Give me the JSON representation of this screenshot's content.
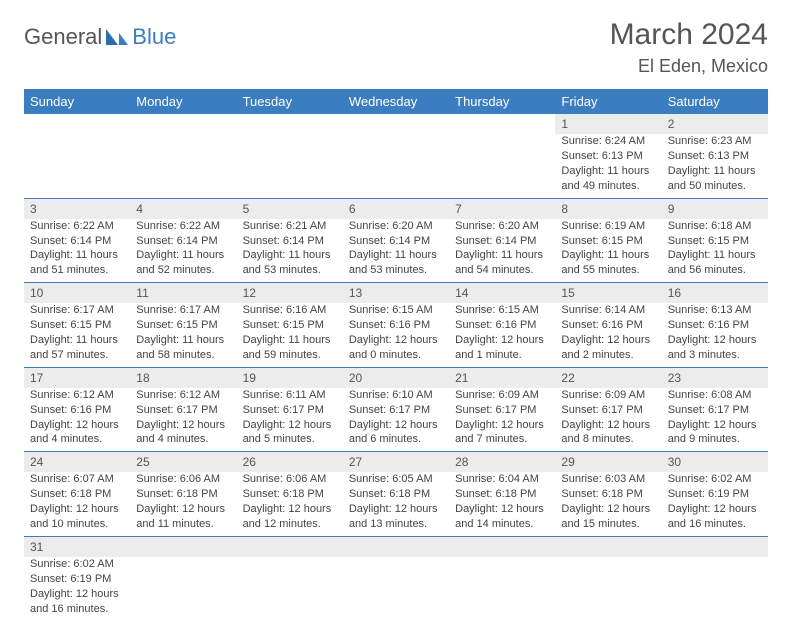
{
  "header": {
    "logo_text_1": "General",
    "logo_text_2": "Blue",
    "month_title": "March 2024",
    "location": "El Eden, Mexico"
  },
  "colors": {
    "header_bg": "#3a7ec1",
    "header_text": "#ffffff",
    "daynum_bg": "#ececec",
    "row_divider": "#3a7ec1",
    "body_text": "#444444",
    "title_text": "#555555"
  },
  "weekdays": [
    "Sunday",
    "Monday",
    "Tuesday",
    "Wednesday",
    "Thursday",
    "Friday",
    "Saturday"
  ],
  "weeks": [
    [
      {
        "empty": true
      },
      {
        "empty": true
      },
      {
        "empty": true
      },
      {
        "empty": true
      },
      {
        "empty": true
      },
      {
        "day": "1",
        "sunrise": "Sunrise: 6:24 AM",
        "sunset": "Sunset: 6:13 PM",
        "daylight1": "Daylight: 11 hours",
        "daylight2": "and 49 minutes."
      },
      {
        "day": "2",
        "sunrise": "Sunrise: 6:23 AM",
        "sunset": "Sunset: 6:13 PM",
        "daylight1": "Daylight: 11 hours",
        "daylight2": "and 50 minutes."
      }
    ],
    [
      {
        "day": "3",
        "sunrise": "Sunrise: 6:22 AM",
        "sunset": "Sunset: 6:14 PM",
        "daylight1": "Daylight: 11 hours",
        "daylight2": "and 51 minutes."
      },
      {
        "day": "4",
        "sunrise": "Sunrise: 6:22 AM",
        "sunset": "Sunset: 6:14 PM",
        "daylight1": "Daylight: 11 hours",
        "daylight2": "and 52 minutes."
      },
      {
        "day": "5",
        "sunrise": "Sunrise: 6:21 AM",
        "sunset": "Sunset: 6:14 PM",
        "daylight1": "Daylight: 11 hours",
        "daylight2": "and 53 minutes."
      },
      {
        "day": "6",
        "sunrise": "Sunrise: 6:20 AM",
        "sunset": "Sunset: 6:14 PM",
        "daylight1": "Daylight: 11 hours",
        "daylight2": "and 53 minutes."
      },
      {
        "day": "7",
        "sunrise": "Sunrise: 6:20 AM",
        "sunset": "Sunset: 6:14 PM",
        "daylight1": "Daylight: 11 hours",
        "daylight2": "and 54 minutes."
      },
      {
        "day": "8",
        "sunrise": "Sunrise: 6:19 AM",
        "sunset": "Sunset: 6:15 PM",
        "daylight1": "Daylight: 11 hours",
        "daylight2": "and 55 minutes."
      },
      {
        "day": "9",
        "sunrise": "Sunrise: 6:18 AM",
        "sunset": "Sunset: 6:15 PM",
        "daylight1": "Daylight: 11 hours",
        "daylight2": "and 56 minutes."
      }
    ],
    [
      {
        "day": "10",
        "sunrise": "Sunrise: 6:17 AM",
        "sunset": "Sunset: 6:15 PM",
        "daylight1": "Daylight: 11 hours",
        "daylight2": "and 57 minutes."
      },
      {
        "day": "11",
        "sunrise": "Sunrise: 6:17 AM",
        "sunset": "Sunset: 6:15 PM",
        "daylight1": "Daylight: 11 hours",
        "daylight2": "and 58 minutes."
      },
      {
        "day": "12",
        "sunrise": "Sunrise: 6:16 AM",
        "sunset": "Sunset: 6:15 PM",
        "daylight1": "Daylight: 11 hours",
        "daylight2": "and 59 minutes."
      },
      {
        "day": "13",
        "sunrise": "Sunrise: 6:15 AM",
        "sunset": "Sunset: 6:16 PM",
        "daylight1": "Daylight: 12 hours",
        "daylight2": "and 0 minutes."
      },
      {
        "day": "14",
        "sunrise": "Sunrise: 6:15 AM",
        "sunset": "Sunset: 6:16 PM",
        "daylight1": "Daylight: 12 hours",
        "daylight2": "and 1 minute."
      },
      {
        "day": "15",
        "sunrise": "Sunrise: 6:14 AM",
        "sunset": "Sunset: 6:16 PM",
        "daylight1": "Daylight: 12 hours",
        "daylight2": "and 2 minutes."
      },
      {
        "day": "16",
        "sunrise": "Sunrise: 6:13 AM",
        "sunset": "Sunset: 6:16 PM",
        "daylight1": "Daylight: 12 hours",
        "daylight2": "and 3 minutes."
      }
    ],
    [
      {
        "day": "17",
        "sunrise": "Sunrise: 6:12 AM",
        "sunset": "Sunset: 6:16 PM",
        "daylight1": "Daylight: 12 hours",
        "daylight2": "and 4 minutes."
      },
      {
        "day": "18",
        "sunrise": "Sunrise: 6:12 AM",
        "sunset": "Sunset: 6:17 PM",
        "daylight1": "Daylight: 12 hours",
        "daylight2": "and 4 minutes."
      },
      {
        "day": "19",
        "sunrise": "Sunrise: 6:11 AM",
        "sunset": "Sunset: 6:17 PM",
        "daylight1": "Daylight: 12 hours",
        "daylight2": "and 5 minutes."
      },
      {
        "day": "20",
        "sunrise": "Sunrise: 6:10 AM",
        "sunset": "Sunset: 6:17 PM",
        "daylight1": "Daylight: 12 hours",
        "daylight2": "and 6 minutes."
      },
      {
        "day": "21",
        "sunrise": "Sunrise: 6:09 AM",
        "sunset": "Sunset: 6:17 PM",
        "daylight1": "Daylight: 12 hours",
        "daylight2": "and 7 minutes."
      },
      {
        "day": "22",
        "sunrise": "Sunrise: 6:09 AM",
        "sunset": "Sunset: 6:17 PM",
        "daylight1": "Daylight: 12 hours",
        "daylight2": "and 8 minutes."
      },
      {
        "day": "23",
        "sunrise": "Sunrise: 6:08 AM",
        "sunset": "Sunset: 6:17 PM",
        "daylight1": "Daylight: 12 hours",
        "daylight2": "and 9 minutes."
      }
    ],
    [
      {
        "day": "24",
        "sunrise": "Sunrise: 6:07 AM",
        "sunset": "Sunset: 6:18 PM",
        "daylight1": "Daylight: 12 hours",
        "daylight2": "and 10 minutes."
      },
      {
        "day": "25",
        "sunrise": "Sunrise: 6:06 AM",
        "sunset": "Sunset: 6:18 PM",
        "daylight1": "Daylight: 12 hours",
        "daylight2": "and 11 minutes."
      },
      {
        "day": "26",
        "sunrise": "Sunrise: 6:06 AM",
        "sunset": "Sunset: 6:18 PM",
        "daylight1": "Daylight: 12 hours",
        "daylight2": "and 12 minutes."
      },
      {
        "day": "27",
        "sunrise": "Sunrise: 6:05 AM",
        "sunset": "Sunset: 6:18 PM",
        "daylight1": "Daylight: 12 hours",
        "daylight2": "and 13 minutes."
      },
      {
        "day": "28",
        "sunrise": "Sunrise: 6:04 AM",
        "sunset": "Sunset: 6:18 PM",
        "daylight1": "Daylight: 12 hours",
        "daylight2": "and 14 minutes."
      },
      {
        "day": "29",
        "sunrise": "Sunrise: 6:03 AM",
        "sunset": "Sunset: 6:18 PM",
        "daylight1": "Daylight: 12 hours",
        "daylight2": "and 15 minutes."
      },
      {
        "day": "30",
        "sunrise": "Sunrise: 6:02 AM",
        "sunset": "Sunset: 6:19 PM",
        "daylight1": "Daylight: 12 hours",
        "daylight2": "and 16 minutes."
      }
    ],
    [
      {
        "day": "31",
        "sunrise": "Sunrise: 6:02 AM",
        "sunset": "Sunset: 6:19 PM",
        "daylight1": "Daylight: 12 hours",
        "daylight2": "and 16 minutes."
      },
      {
        "empty": true
      },
      {
        "empty": true
      },
      {
        "empty": true
      },
      {
        "empty": true
      },
      {
        "empty": true
      },
      {
        "empty": true
      }
    ]
  ]
}
